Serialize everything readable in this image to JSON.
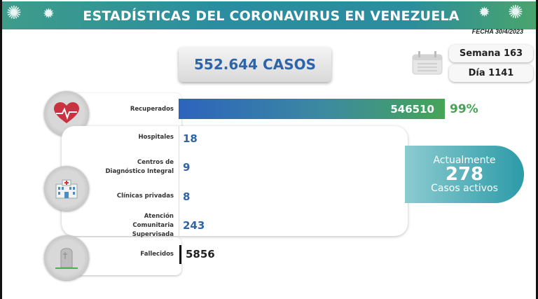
{
  "header": {
    "title": "ESTADÍSTICAS DEL CORONAVIRUS EN VENEZUELA",
    "date": "FECHA 30/4/2023"
  },
  "total_cases": "552.644 CASOS",
  "calendar": {
    "week": "Semana 163",
    "day": "Día 1141"
  },
  "recovered": {
    "label": "Recuperados",
    "value": "546510",
    "percent": "99%",
    "fill_fraction": 0.99
  },
  "locations": [
    {
      "label": "Hospitales",
      "value": "18"
    },
    {
      "label_lines": [
        "Centros de",
        "Diagnóstico Integral"
      ],
      "value": "9"
    },
    {
      "label": "Clínicas privadas",
      "value": "8"
    },
    {
      "label_lines": [
        "Atención",
        "Comunitaria",
        "Supervisada"
      ],
      "value": "243"
    }
  ],
  "active": {
    "prefix": "Actualmente",
    "value": "278",
    "suffix": "Casos activos"
  },
  "deaths": {
    "label": "Fallecidos",
    "value": "5856"
  },
  "icons": [
    "virus-icon",
    "calendar-icon",
    "heart-pulse-icon",
    "hospital-icon",
    "tombstone-icon"
  ],
  "colors": {
    "banner": "#2a8ea0",
    "accent_blue": "#2e64a8",
    "accent_green": "#45a557",
    "active_teal": "#2c9ba8"
  }
}
